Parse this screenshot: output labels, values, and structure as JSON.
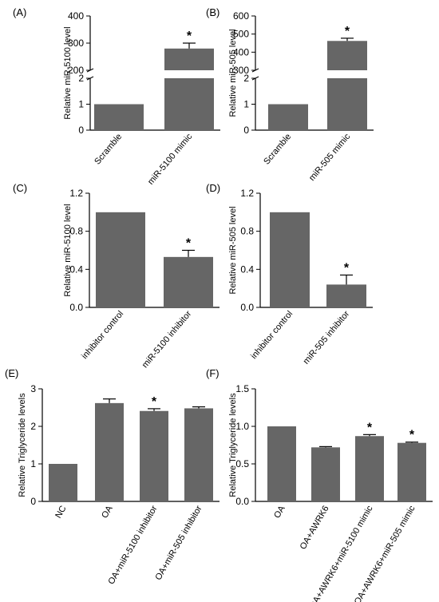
{
  "chart_data": [
    {
      "panel": "(A)",
      "type": "bar",
      "ylabel": "Relative miR-5100 level",
      "axis_break": true,
      "ylim_lower": [
        0,
        2
      ],
      "yticks_lower": [
        "0",
        "1",
        "2"
      ],
      "ylim_upper": [
        200,
        400
      ],
      "yticks_upper": [
        "200",
        "300",
        "400"
      ],
      "categories": [
        "Scramble",
        "miR-5100 mimic"
      ],
      "values": [
        1,
        280
      ],
      "errors": [
        0,
        20
      ],
      "significance": [
        "",
        "*"
      ]
    },
    {
      "panel": "(B)",
      "type": "bar",
      "ylabel": "Relative miR-505 level",
      "axis_break": true,
      "ylim_lower": [
        0,
        2
      ],
      "yticks_lower": [
        "0",
        "1",
        "2"
      ],
      "ylim_upper": [
        300,
        600
      ],
      "yticks_upper": [
        "300",
        "400",
        "500",
        "600"
      ],
      "categories": [
        "Scramble",
        "miR-505 mimic"
      ],
      "values": [
        1,
        462
      ],
      "errors": [
        0,
        15
      ],
      "significance": [
        "",
        "*"
      ]
    },
    {
      "panel": "(C)",
      "type": "bar",
      "ylabel": "Relative miR-5100 level",
      "ylim": [
        0,
        1.2
      ],
      "yticks": [
        "0.0",
        "0.4",
        "0.8",
        "1.2"
      ],
      "categories": [
        "inhibitor control",
        "miR-5100 inhibitor"
      ],
      "values": [
        1.0,
        0.53
      ],
      "errors": [
        0,
        0.07
      ],
      "significance": [
        "",
        "*"
      ]
    },
    {
      "panel": "(D)",
      "type": "bar",
      "ylabel": "Relative miR-505 level",
      "ylim": [
        0,
        1.2
      ],
      "yticks": [
        "0.0",
        "0.4",
        "0.8",
        "1.2"
      ],
      "categories": [
        "inhibitor control",
        "miR-505 inhibitor"
      ],
      "values": [
        1.0,
        0.24
      ],
      "errors": [
        0,
        0.1
      ],
      "significance": [
        "",
        "*"
      ]
    },
    {
      "panel": "(E)",
      "type": "bar",
      "ylabel": "Relative Triglyceride levels",
      "ylim": [
        0,
        3
      ],
      "yticks": [
        "0",
        "1",
        "2",
        "3"
      ],
      "categories": [
        "NC",
        "OA",
        "OA+miR-5100 inhibitor",
        "OA+miR-505 inhibitor"
      ],
      "values": [
        1.0,
        2.62,
        2.41,
        2.48
      ],
      "errors": [
        0,
        0.11,
        0.06,
        0.04
      ],
      "significance": [
        "",
        "",
        "*",
        ""
      ]
    },
    {
      "panel": "(F)",
      "type": "bar",
      "ylabel": "Relative Triglyceride levels",
      "ylim": [
        0,
        1.5
      ],
      "yticks": [
        "0.0",
        "0.5",
        "1.0",
        "1.5"
      ],
      "categories": [
        "OA",
        "OA+AWRK6",
        "OA+AWRK6+miR-5100 mimic",
        "OA+AWRK6+miR-505 mimic"
      ],
      "values": [
        1.0,
        0.72,
        0.87,
        0.78
      ],
      "errors": [
        0,
        0.01,
        0.02,
        0.01
      ],
      "significance": [
        "",
        "",
        "*",
        "*"
      ]
    }
  ],
  "colors": {
    "bar": "#666666",
    "axis": "#000000",
    "text": "#000000"
  }
}
